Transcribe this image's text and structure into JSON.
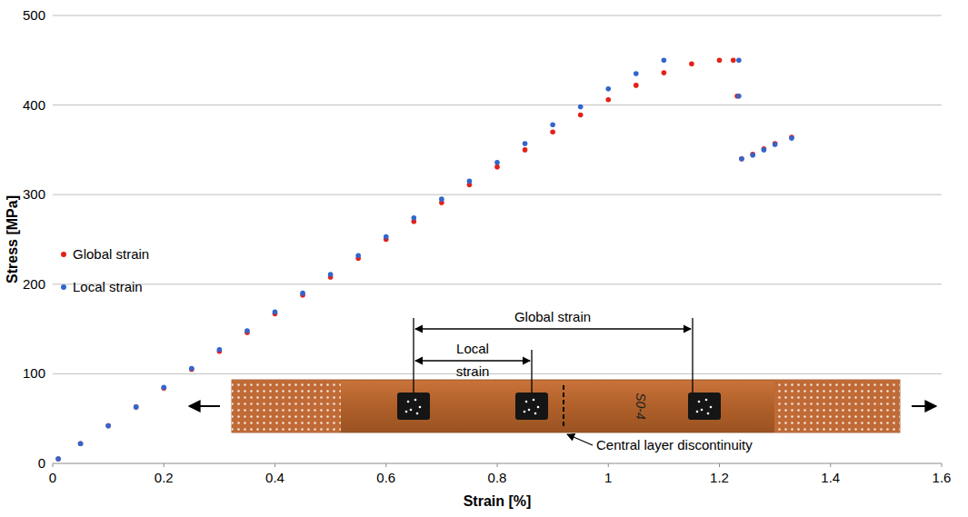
{
  "chart_data": {
    "type": "scatter",
    "x_label": "Strain [%]",
    "y_label": "Stress [MPa]",
    "xlim": [
      0,
      1.6
    ],
    "ylim": [
      0,
      500
    ],
    "xticks": [
      0,
      0.2,
      0.4,
      0.6,
      0.8,
      1,
      1.2,
      1.4,
      1.6
    ],
    "yticks": [
      0,
      100,
      200,
      300,
      400,
      500
    ],
    "grid": true,
    "legend": "left",
    "marker": "circle",
    "series": [
      {
        "name": "Global strain",
        "color": "#e32119",
        "x": [
          0.01,
          0.05,
          0.1,
          0.15,
          0.2,
          0.25,
          0.3,
          0.35,
          0.4,
          0.45,
          0.5,
          0.55,
          0.6,
          0.65,
          0.7,
          0.75,
          0.8,
          0.85,
          0.9,
          0.95,
          1.0,
          1.05,
          1.1,
          1.15,
          1.2,
          1.225,
          1.232,
          1.24,
          1.26,
          1.28,
          1.3,
          1.33
        ],
        "values": [
          5,
          22,
          42,
          63,
          84,
          105,
          125,
          146,
          167,
          188,
          208,
          229,
          250,
          270,
          291,
          311,
          331,
          350,
          370,
          389,
          406,
          422,
          436,
          446,
          450,
          450,
          410,
          340,
          345,
          351,
          357,
          364
        ]
      },
      {
        "name": "Local strain",
        "color": "#3366cc",
        "x": [
          0.01,
          0.05,
          0.1,
          0.15,
          0.2,
          0.25,
          0.3,
          0.35,
          0.4,
          0.45,
          0.5,
          0.55,
          0.6,
          0.65,
          0.7,
          0.75,
          0.8,
          0.85,
          0.9,
          0.95,
          1.0,
          1.05,
          1.1,
          1.235,
          1.235,
          1.24,
          1.26,
          1.28,
          1.3,
          1.33
        ],
        "values": [
          5,
          22,
          42,
          63,
          85,
          106,
          127,
          148,
          169,
          190,
          211,
          232,
          253,
          274,
          295,
          315,
          336,
          357,
          378,
          398,
          418,
          435,
          450,
          450,
          410,
          340,
          344,
          350,
          356,
          363
        ]
      }
    ],
    "annotations": {
      "global_strain": "Global strain",
      "local_strain": "Local strain",
      "central_layer": "Central layer discontinuity",
      "specimen_label": "S0-4"
    }
  }
}
